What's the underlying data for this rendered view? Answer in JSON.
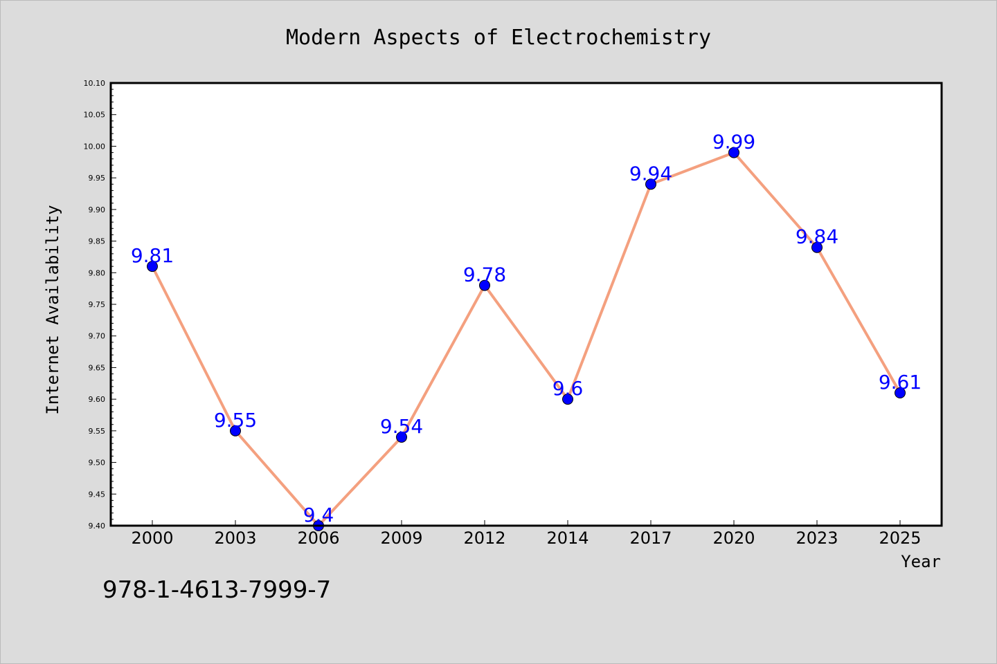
{
  "colors": {
    "background": "#dcdcdc",
    "plot_background": "#ffffff",
    "line": "#f4a07f",
    "marker": "#0000ff",
    "data_label": "#0000ff"
  },
  "footer": {
    "isbn": "978-1-4613-7999-7"
  },
  "chart_data": {
    "type": "line",
    "title": "Modern Aspects of Electrochemistry",
    "xlabel": "Year",
    "ylabel": "Internet Availability",
    "categories": [
      "2000",
      "2003",
      "2006",
      "2009",
      "2012",
      "2014",
      "2017",
      "2020",
      "2023",
      "2025"
    ],
    "series": [
      {
        "values": [
          9.81,
          9.55,
          9.4,
          9.54,
          9.78,
          9.6,
          9.94,
          9.99,
          9.84,
          9.61
        ],
        "data_labels": [
          "9.81",
          "9.55",
          "9.4",
          "9.54",
          "9.78",
          "9.6",
          "9.94",
          "9.99",
          "9.84",
          "9.61"
        ]
      }
    ],
    "ylim": [
      9.4,
      10.1
    ],
    "yticks": [
      "9.40",
      "9.45",
      "9.50",
      "9.55",
      "9.60",
      "9.65",
      "9.70",
      "9.75",
      "9.80",
      "9.85",
      "9.90",
      "9.95",
      "10.00",
      "10.05",
      "10.10"
    ],
    "grid": false,
    "legend": "none",
    "marker": "circle"
  }
}
